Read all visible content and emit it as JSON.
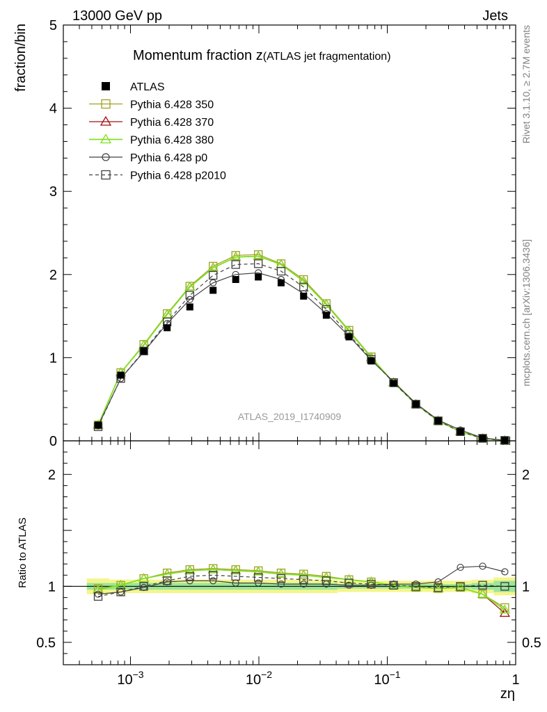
{
  "header": {
    "left": "13000 GeV pp",
    "right": "Jets"
  },
  "side_labels": {
    "rivet": "Rivet 3.1.10, ≥ 2.7M events",
    "mcplots": "mcplots.cern.ch [arXiv:1306.3436]"
  },
  "chart_data": {
    "type": "line",
    "title_main": "Momentum fraction ",
    "title_z": "z",
    "title_sub": "(ATLAS jet fragmentation)",
    "ylabel": "fraction/bin",
    "ratio_ylabel": "Ratio to ATLAS",
    "xlabel": "zη",
    "analysis_id": "ATLAS_2019_I1740909",
    "x_scale": "log",
    "xlim": [
      0.0003,
      1.0
    ],
    "ylim": [
      0,
      5
    ],
    "ratio_ylim": [
      0.3,
      2.3
    ],
    "x_ticks": [
      {
        "value": 0.001,
        "base": "10",
        "exp": "−3"
      },
      {
        "value": 0.01,
        "base": "10",
        "exp": "−2"
      },
      {
        "value": 0.1,
        "base": "10",
        "exp": "−1"
      },
      {
        "value": 1,
        "base": "1",
        "exp": ""
      }
    ],
    "y_ticks": [
      {
        "value": 0,
        "label": "0"
      },
      {
        "value": 1,
        "label": "1"
      },
      {
        "value": 2,
        "label": "2"
      },
      {
        "value": 3,
        "label": "3"
      },
      {
        "value": 4,
        "label": "4"
      },
      {
        "value": 5,
        "label": "5"
      }
    ],
    "ratio_y_ticks": [
      {
        "value": 0.5,
        "label": "0.5"
      },
      {
        "value": 1,
        "label": "1"
      },
      {
        "value": 2,
        "label": "2"
      }
    ],
    "x": [
      0.00056,
      0.00084,
      0.00127,
      0.00193,
      0.0029,
      0.0044,
      0.0066,
      0.0099,
      0.0149,
      0.0223,
      0.0335,
      0.0503,
      0.075,
      0.112,
      0.167,
      0.249,
      0.371,
      0.553,
      0.823
    ],
    "legend_placement": "top-left",
    "series": [
      {
        "name": "ATLAS",
        "color": "#000000",
        "marker": "filled-square",
        "line": "none",
        "values": [
          0.19,
          0.79,
          1.08,
          1.36,
          1.61,
          1.81,
          1.94,
          1.97,
          1.9,
          1.74,
          1.51,
          1.25,
          0.96,
          0.69,
          0.44,
          0.24,
          0.11,
          0.03,
          0.005
        ]
      },
      {
        "name": "Pythia 6.428 350",
        "color": "#a0a020",
        "marker": "open-square",
        "line": "solid",
        "values": [
          0.19,
          0.82,
          1.16,
          1.53,
          1.86,
          2.1,
          2.23,
          2.24,
          2.13,
          1.94,
          1.65,
          1.33,
          1.01,
          0.7,
          0.44,
          0.24,
          0.11,
          0.03,
          0.004
        ]
      },
      {
        "name": "Pythia 6.428 370",
        "color": "#a01010",
        "marker": "open-triangle",
        "line": "solid",
        "values": [
          0.19,
          0.82,
          1.15,
          1.52,
          1.85,
          2.08,
          2.21,
          2.22,
          2.12,
          1.92,
          1.64,
          1.32,
          1.0,
          0.7,
          0.44,
          0.24,
          0.11,
          0.028,
          0.004
        ]
      },
      {
        "name": "Pythia 6.428 380",
        "color": "#80e020",
        "marker": "open-triangle",
        "line": "solid",
        "values": [
          0.19,
          0.82,
          1.15,
          1.52,
          1.85,
          2.08,
          2.21,
          2.22,
          2.12,
          1.92,
          1.64,
          1.32,
          1.0,
          0.7,
          0.44,
          0.24,
          0.11,
          0.028,
          0.004
        ]
      },
      {
        "name": "Pythia 6.428 p0",
        "color": "#404040",
        "marker": "open-circle",
        "line": "solid",
        "values": [
          0.18,
          0.75,
          1.07,
          1.41,
          1.7,
          1.9,
          2.0,
          2.02,
          1.94,
          1.77,
          1.53,
          1.26,
          0.97,
          0.71,
          0.45,
          0.25,
          0.13,
          0.035,
          0.006
        ]
      },
      {
        "name": "Pythia 6.428 p2010",
        "color": "#404040",
        "marker": "open-square",
        "line": "dashed",
        "values": [
          0.17,
          0.75,
          1.08,
          1.43,
          1.75,
          1.99,
          2.12,
          2.13,
          2.04,
          1.85,
          1.58,
          1.28,
          0.98,
          0.7,
          0.44,
          0.24,
          0.11,
          0.03,
          0.005
        ]
      }
    ],
    "ratio_series": [
      {
        "name": "Pythia 6.428 350",
        "values": [
          0.98,
          1.01,
          1.07,
          1.12,
          1.15,
          1.16,
          1.15,
          1.14,
          1.12,
          1.11,
          1.09,
          1.06,
          1.04,
          1.01,
          0.99,
          0.98,
          0.99,
          0.93,
          0.81
        ]
      },
      {
        "name": "Pythia 6.428 370",
        "values": [
          0.97,
          1.01,
          1.07,
          1.11,
          1.14,
          1.15,
          1.14,
          1.13,
          1.11,
          1.1,
          1.08,
          1.06,
          1.04,
          1.01,
          0.99,
          0.98,
          0.99,
          0.93,
          0.76
        ]
      },
      {
        "name": "Pythia 6.428 380",
        "values": [
          0.97,
          1.01,
          1.07,
          1.11,
          1.14,
          1.15,
          1.14,
          1.13,
          1.11,
          1.1,
          1.08,
          1.06,
          1.04,
          1.01,
          0.99,
          0.98,
          0.99,
          0.93,
          0.79
        ]
      },
      {
        "name": "Pythia 6.428 p0",
        "values": [
          0.93,
          0.95,
          0.99,
          1.04,
          1.05,
          1.05,
          1.03,
          1.03,
          1.02,
          1.02,
          1.02,
          1.01,
          1.01,
          1.02,
          1.02,
          1.04,
          1.17,
          1.18,
          1.13
        ]
      },
      {
        "name": "Pythia 6.428 p2010",
        "values": [
          0.91,
          0.95,
          1.0,
          1.05,
          1.09,
          1.1,
          1.09,
          1.08,
          1.07,
          1.06,
          1.05,
          1.03,
          1.02,
          1.01,
          1.0,
          0.99,
          1.0,
          1.01,
          1.0
        ]
      }
    ],
    "ratio_band": {
      "yellow_halfwidth": [
        0.07,
        0.06,
        0.06,
        0.06,
        0.06,
        0.06,
        0.06,
        0.06,
        0.06,
        0.06,
        0.06,
        0.05,
        0.05,
        0.05,
        0.05,
        0.05,
        0.05,
        0.06,
        0.08
      ],
      "green_halfwidth": [
        0.03,
        0.03,
        0.03,
        0.03,
        0.03,
        0.03,
        0.03,
        0.03,
        0.03,
        0.03,
        0.03,
        0.02,
        0.02,
        0.02,
        0.02,
        0.02,
        0.02,
        0.03,
        0.05
      ]
    }
  }
}
